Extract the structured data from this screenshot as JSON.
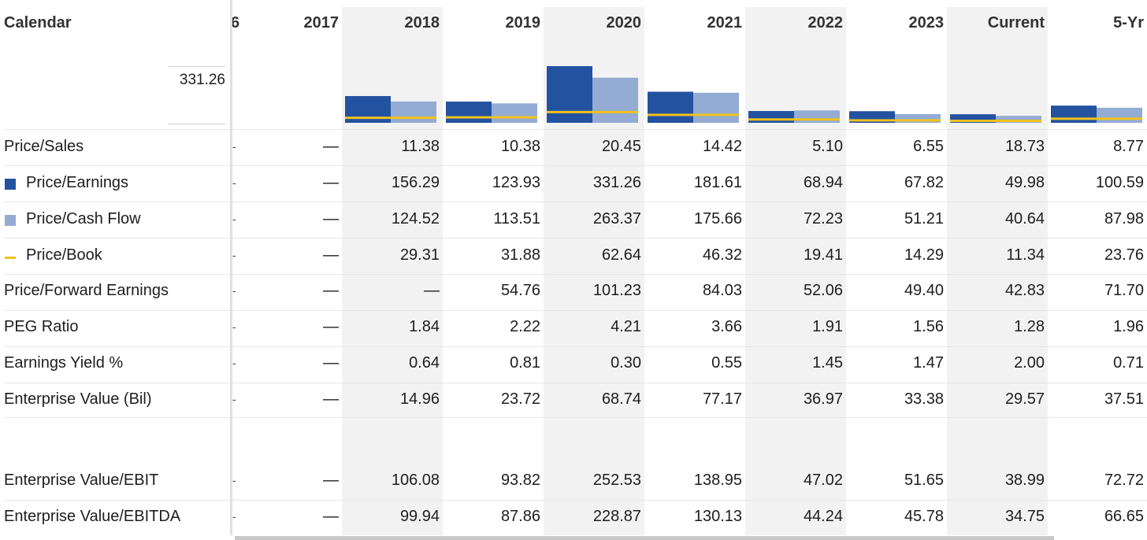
{
  "header": {
    "calendar_label": "Calendar",
    "cut_label": "6",
    "years": [
      "2017",
      "2018",
      "2019",
      "2020",
      "2021",
      "2022",
      "2023",
      "Current",
      "5-Yr"
    ]
  },
  "tooltip_value": "331.26",
  "colors": {
    "price_earnings": "#2352a0",
    "price_cash_flow": "#94acd4",
    "price_book": "#f2c21b",
    "shade": "#f2f2f2"
  },
  "rows": [
    {
      "label": "Price/Sales",
      "cut": "-",
      "values": [
        "—",
        "11.38",
        "10.38",
        "20.45",
        "14.42",
        "5.10",
        "6.55",
        "18.73",
        "8.77"
      ]
    },
    {
      "label": "Price/Earnings",
      "legend": "price_earnings",
      "cut": "-",
      "values": [
        "—",
        "156.29",
        "123.93",
        "331.26",
        "181.61",
        "68.94",
        "67.82",
        "49.98",
        "100.59"
      ]
    },
    {
      "label": "Price/Cash Flow",
      "legend": "price_cash_flow",
      "cut": "-",
      "values": [
        "—",
        "124.52",
        "113.51",
        "263.37",
        "175.66",
        "72.23",
        "51.21",
        "40.64",
        "87.98"
      ]
    },
    {
      "label": "Price/Book",
      "legend": "price_book",
      "cut": "-",
      "values": [
        "—",
        "29.31",
        "31.88",
        "62.64",
        "46.32",
        "19.41",
        "14.29",
        "11.34",
        "23.76"
      ]
    },
    {
      "label": "Price/Forward Earnings",
      "cut": "-",
      "values": [
        "—",
        "—",
        "54.76",
        "101.23",
        "84.03",
        "52.06",
        "49.40",
        "42.83",
        "71.70"
      ]
    },
    {
      "label": "PEG Ratio",
      "cut": "-",
      "values": [
        "—",
        "1.84",
        "2.22",
        "4.21",
        "3.66",
        "1.91",
        "1.56",
        "1.28",
        "1.96"
      ]
    },
    {
      "label": "Earnings Yield %",
      "cut": "-",
      "values": [
        "—",
        "0.64",
        "0.81",
        "0.30",
        "0.55",
        "1.45",
        "1.47",
        "2.00",
        "0.71"
      ]
    },
    {
      "label": "Enterprise Value (Bil)",
      "cut": "-",
      "values": [
        "—",
        "14.96",
        "23.72",
        "68.74",
        "77.17",
        "36.97",
        "33.38",
        "29.57",
        "37.51"
      ]
    },
    {
      "label": "Enterprise Value/EBIT",
      "cut": "-",
      "values": [
        "—",
        "106.08",
        "93.82",
        "252.53",
        "138.95",
        "47.02",
        "51.65",
        "38.99",
        "72.72"
      ]
    },
    {
      "label": "Enterprise Value/EBITDA",
      "cut": "-",
      "values": [
        "—",
        "99.94",
        "87.86",
        "228.87",
        "130.13",
        "44.24",
        "45.78",
        "34.75",
        "66.65"
      ]
    }
  ],
  "chart_data": {
    "type": "bar",
    "categories": [
      "2018",
      "2019",
      "2020",
      "2021",
      "2022",
      "2023",
      "Current",
      "5-Yr"
    ],
    "series": [
      {
        "name": "Price/Earnings",
        "type": "bar",
        "values": [
          156.29,
          123.93,
          331.26,
          181.61,
          68.94,
          67.82,
          49.98,
          100.59
        ]
      },
      {
        "name": "Price/Cash Flow",
        "type": "bar",
        "values": [
          124.52,
          113.51,
          263.37,
          175.66,
          72.23,
          51.21,
          40.64,
          87.98
        ]
      },
      {
        "name": "Price/Book",
        "type": "line-marker",
        "values": [
          29.31,
          31.88,
          62.64,
          46.32,
          19.41,
          14.29,
          11.34,
          23.76
        ]
      }
    ],
    "ylim": [
      0,
      331.26
    ],
    "grid": false,
    "legend": "left-in-table"
  }
}
